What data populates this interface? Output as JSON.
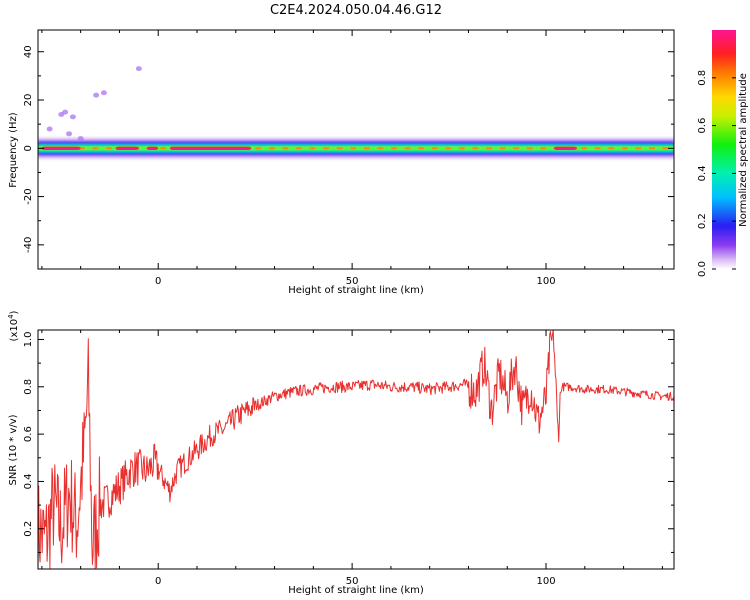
{
  "figure_title": "C2E4.2024.050.04.46.G12",
  "colors": {
    "snr_line": "#e8302f",
    "axis": "#000000",
    "background": "#ffffff"
  },
  "chart_data": [
    {
      "type": "heatmap",
      "title": "C2E4.2024.050.04.46.G12",
      "xlabel": "Height of straight line (km)",
      "ylabel": "Frequency (Hz)",
      "xlim": [
        -31,
        133
      ],
      "ylim": [
        -50,
        49
      ],
      "x_ticks": [
        0,
        50,
        100
      ],
      "y_ticks": [
        40,
        20,
        0,
        -20,
        -40
      ],
      "colorbar": {
        "label": "Normalized spectral amplitude",
        "range": [
          0,
          1
        ],
        "ticks": [
          0.0,
          0.2,
          0.4,
          0.6,
          0.8
        ],
        "tick_labels": [
          "0.0",
          "0.2",
          "0.4",
          "0.6",
          "0.8"
        ],
        "colormap": "rainbow (white-purple-blue-cyan-green-yellow-orange-red-magenta)"
      },
      "band": {
        "center_frequency_hz": 0,
        "core_width_hz": 2,
        "halo_width_hz": 8,
        "high_amplitude_segments_km": [
          [
            -30,
            -20
          ],
          [
            -11,
            -5
          ],
          [
            -3,
            0
          ],
          [
            3,
            24
          ],
          [
            102,
            108
          ]
        ],
        "scattered_points": [
          {
            "x": -28,
            "y": 8
          },
          {
            "x": -25,
            "y": 14
          },
          {
            "x": -24,
            "y": 15
          },
          {
            "x": -22,
            "y": 13
          },
          {
            "x": -16,
            "y": 22
          },
          {
            "x": -14,
            "y": 23
          },
          {
            "x": -5,
            "y": 33
          },
          {
            "x": -20,
            "y": 4
          },
          {
            "x": -23,
            "y": 6
          }
        ]
      }
    },
    {
      "type": "line",
      "xlabel": "Height of straight line (km)",
      "ylabel": "SNR (10 * v/v)",
      "y_multiplier": "(x10^4)",
      "y_multiplier_base": "(x10",
      "y_multiplier_exp": "4",
      "y_multiplier_close": ")",
      "xlim": [
        -31,
        133
      ],
      "ylim": [
        0.03,
        1.04
      ],
      "x_ticks": [
        0,
        50,
        100
      ],
      "y_ticks": [
        0.2,
        0.4,
        0.6,
        0.8,
        1.0
      ],
      "x_tick_labels": [
        "0",
        "50",
        "100"
      ],
      "y_tick_labels": [
        "0.2",
        "0.4",
        "0.6",
        "0.8",
        "1.0"
      ],
      "series": [
        {
          "x": [
            -31,
            -29,
            -27,
            -25,
            -23,
            -21,
            -19,
            -18,
            -17,
            -15,
            -13,
            -11,
            -9,
            -7,
            -5,
            -3,
            -1,
            1,
            3,
            5,
            8,
            11,
            14,
            17,
            20,
            25,
            30,
            35,
            40,
            45,
            50,
            55,
            60,
            65,
            70,
            75,
            79,
            82,
            84,
            86,
            88,
            90,
            92,
            94,
            96,
            98,
            100,
            101,
            102,
            103,
            104,
            106,
            110,
            115,
            120,
            125,
            130,
            133
          ],
          "y": [
            0.2,
            0.15,
            0.3,
            0.2,
            0.35,
            0.22,
            0.55,
            0.82,
            0.12,
            0.3,
            0.32,
            0.36,
            0.4,
            0.45,
            0.46,
            0.44,
            0.48,
            0.42,
            0.36,
            0.45,
            0.5,
            0.55,
            0.6,
            0.62,
            0.67,
            0.72,
            0.76,
            0.78,
            0.79,
            0.8,
            0.8,
            0.81,
            0.8,
            0.8,
            0.79,
            0.8,
            0.81,
            0.78,
            0.9,
            0.7,
            0.86,
            0.75,
            0.9,
            0.7,
            0.8,
            0.65,
            0.75,
            0.95,
            1.02,
            0.6,
            0.8,
            0.8,
            0.79,
            0.79,
            0.78,
            0.77,
            0.76,
            0.76
          ],
          "color": "#e8302f"
        }
      ]
    }
  ]
}
